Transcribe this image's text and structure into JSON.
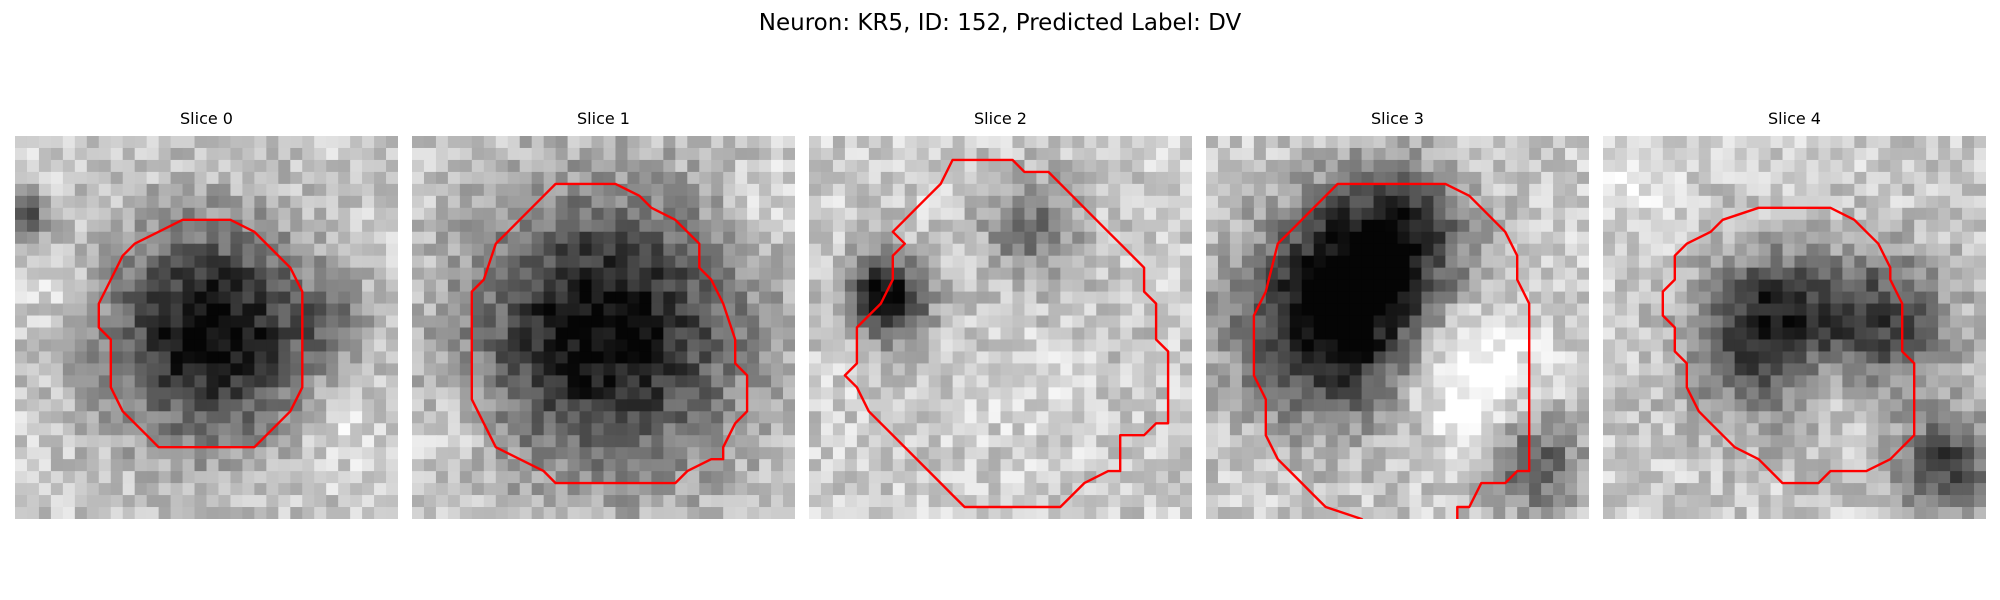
{
  "figure": {
    "title": "Neuron: KR5, ID: 152, Predicted Label: DV"
  },
  "panels": [
    {
      "title": "Slice 0"
    },
    {
      "title": "Slice 1"
    },
    {
      "title": "Slice 2"
    },
    {
      "title": "Slice 3"
    },
    {
      "title": "Slice 4"
    }
  ],
  "style": {
    "contour_color": "#ff0000",
    "colormap": "grayscale (dark = high intensity)"
  }
}
